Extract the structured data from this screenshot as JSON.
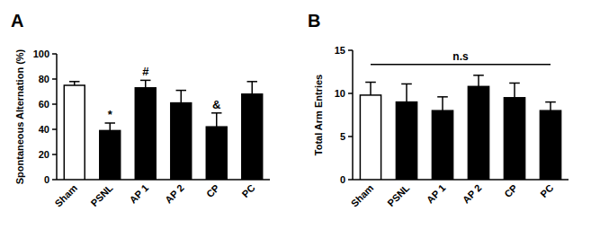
{
  "chart_data": [
    {
      "type": "bar",
      "title": "A",
      "y_label": "Spontaneous Alternation (%)",
      "categories": [
        "Sham",
        "PSNL",
        "AP 1",
        "AP 2",
        "CP",
        "PC"
      ],
      "values": [
        75,
        39,
        73,
        61,
        42,
        68
      ],
      "errors": [
        3,
        6,
        6,
        10,
        11,
        10
      ],
      "colors": [
        "#ffffff",
        "#000000",
        "#000000",
        "#000000",
        "#000000",
        "#000000"
      ],
      "ylim": [
        0,
        100
      ],
      "yticks": [
        0,
        20,
        40,
        60,
        80,
        100
      ],
      "annotations": [
        {
          "text": "*",
          "category": "PSNL"
        },
        {
          "text": "#",
          "category": "AP 1"
        },
        {
          "text": "&",
          "category": "CP"
        }
      ]
    },
    {
      "type": "bar",
      "title": "B",
      "y_label": "Total Arm Entries",
      "categories": [
        "Sham",
        "PSNL",
        "AP 1",
        "AP 2",
        "CP",
        "PC"
      ],
      "values": [
        9.8,
        9.0,
        8.0,
        10.8,
        9.5,
        8.0
      ],
      "errors": [
        1.5,
        2.1,
        1.6,
        1.3,
        1.7,
        1.0
      ],
      "colors": [
        "#ffffff",
        "#000000",
        "#000000",
        "#000000",
        "#000000",
        "#000000"
      ],
      "ylim": [
        0,
        15
      ],
      "yticks": [
        0,
        5,
        10,
        15
      ],
      "annotations": [
        {
          "text": "n.s",
          "from": "Sham",
          "to": "PC"
        }
      ]
    }
  ]
}
